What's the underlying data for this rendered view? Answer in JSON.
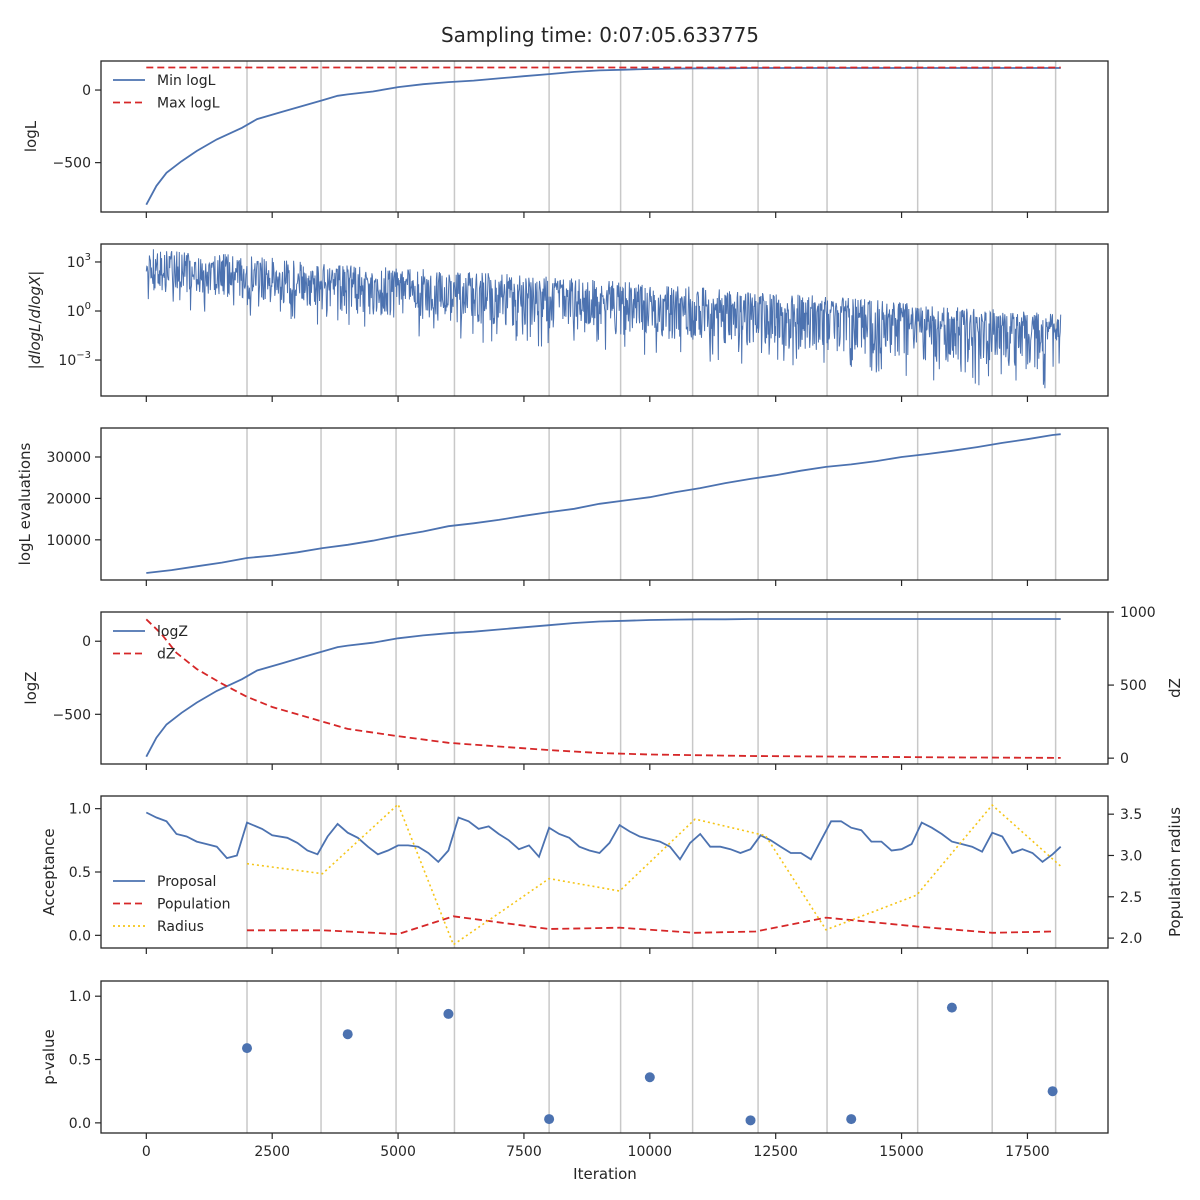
{
  "figure": {
    "title": "Sampling time: 0:07:05.633775",
    "xlabel": "Iteration"
  },
  "colors": {
    "blue": "#4c72b0",
    "red": "#d62728",
    "yellow": "#f5c518",
    "vline": "#c8c8c8",
    "frame": "#262626"
  },
  "chart_data": [
    {
      "type": "line",
      "ylabel": "logL",
      "xlim": [
        -900,
        19100
      ],
      "ylim": [
        -840,
        200
      ],
      "xticks": [
        0,
        2500,
        5000,
        7500,
        10000,
        12500,
        15000,
        17500
      ],
      "yticks": [
        {
          "v": 0,
          "label": "0"
        },
        {
          "v": -500,
          "label": "−500"
        }
      ],
      "legend": "top-left",
      "series": [
        {
          "name": "Min logL",
          "style": "solid",
          "color": "#4c72b0",
          "x": [
            0,
            200,
            400,
            700,
            1000,
            1400,
            1900,
            2200,
            2700,
            3100,
            3500,
            3800,
            4000,
            4500,
            5000,
            5500,
            6000,
            6500,
            7000,
            7500,
            8000,
            8500,
            9000,
            9500,
            10000,
            10500,
            11000,
            11500,
            12000,
            13000,
            14000,
            15000,
            16000,
            17000,
            18160
          ],
          "y": [
            -790,
            -660,
            -570,
            -490,
            -420,
            -340,
            -260,
            -200,
            -150,
            -110,
            -70,
            -40,
            -30,
            -10,
            20,
            40,
            55,
            65,
            80,
            95,
            110,
            125,
            135,
            140,
            145,
            148,
            150,
            150,
            152,
            152,
            152,
            152,
            152,
            152,
            152
          ]
        },
        {
          "name": "Max logL",
          "style": "dashed",
          "color": "#d62728",
          "x": [
            0,
            18160
          ],
          "y": [
            155,
            155
          ]
        }
      ]
    },
    {
      "type": "line",
      "ylabel": "|dlogL/dlogX|",
      "yscale": "log",
      "xlim": [
        -900,
        19100
      ],
      "ylim": [
        -5.2,
        4.1
      ],
      "xticks": [
        0,
        2500,
        5000,
        7500,
        10000,
        12500,
        15000,
        17500
      ],
      "yticks": [
        {
          "v": 3,
          "label": "10",
          "exp": "3"
        },
        {
          "v": 0,
          "label": "10",
          "exp": "0"
        },
        {
          "v": -3,
          "label": "10",
          "exp": "−3"
        }
      ],
      "series": [
        {
          "name": "",
          "style": "noisy",
          "color": "#4c72b0",
          "x": [
            0,
            2000,
            4000,
            6000,
            8000,
            10000,
            12000,
            14000,
            16000,
            18160
          ],
          "y_center": [
            2.4,
            2.1,
            1.6,
            1.3,
            0.9,
            0.5,
            0.0,
            -0.4,
            -0.9,
            -1.3
          ],
          "y_upper": [
            3.9,
            3.4,
            2.8,
            2.5,
            2.1,
            1.7,
            1.2,
            0.8,
            0.3,
            -0.1
          ],
          "y_lower": [
            1.0,
            0.5,
            -0.5,
            -1.0,
            -1.5,
            -2.0,
            -2.5,
            -3.0,
            -3.6,
            -4.2
          ]
        }
      ]
    },
    {
      "type": "line",
      "ylabel": "logL evaluations",
      "xlim": [
        -900,
        19100
      ],
      "ylim": [
        300,
        37000
      ],
      "xticks": [
        0,
        2500,
        5000,
        7500,
        10000,
        12500,
        15000,
        17500
      ],
      "yticks": [
        {
          "v": 10000,
          "label": "10000"
        },
        {
          "v": 20000,
          "label": "20000"
        },
        {
          "v": 30000,
          "label": "30000"
        }
      ],
      "series": [
        {
          "name": "",
          "style": "solid",
          "color": "#4c72b0",
          "x": [
            0,
            500,
            1000,
            1500,
            2000,
            2500,
            3000,
            3500,
            4000,
            4500,
            5000,
            5500,
            6000,
            6500,
            7000,
            7500,
            8000,
            8500,
            9000,
            9500,
            10000,
            10500,
            11000,
            11500,
            12000,
            12500,
            13000,
            13500,
            14000,
            14500,
            15000,
            15500,
            16000,
            16500,
            17000,
            17500,
            18000,
            18160
          ],
          "y": [
            2000,
            2700,
            3600,
            4500,
            5600,
            6200,
            7000,
            8000,
            8800,
            9800,
            11000,
            12000,
            13300,
            14000,
            14800,
            15800,
            16700,
            17500,
            18700,
            19500,
            20300,
            21500,
            22500,
            23700,
            24700,
            25600,
            26700,
            27600,
            28200,
            29000,
            30000,
            30700,
            31500,
            32400,
            33400,
            34300,
            35300,
            35500
          ]
        }
      ]
    },
    {
      "type": "line",
      "ylabel": "logZ",
      "ylabel_right": "dZ",
      "xlim": [
        -900,
        19100
      ],
      "ylim": [
        -840,
        200
      ],
      "ylim_right": [
        -40,
        1000
      ],
      "xticks": [
        0,
        2500,
        5000,
        7500,
        10000,
        12500,
        15000,
        17500
      ],
      "yticks": [
        {
          "v": 0,
          "label": "0"
        },
        {
          "v": -500,
          "label": "−500"
        }
      ],
      "yticks_right": [
        {
          "v": 0,
          "label": "0"
        },
        {
          "v": 500,
          "label": "500"
        },
        {
          "v": 1000,
          "label": "1000"
        }
      ],
      "legend": "top-left",
      "series": [
        {
          "name": "logZ",
          "style": "solid",
          "color": "#4c72b0",
          "axis": "left",
          "x": [
            0,
            200,
            400,
            700,
            1000,
            1400,
            1900,
            2200,
            2700,
            3100,
            3500,
            3800,
            4000,
            4500,
            5000,
            5500,
            6000,
            6500,
            7000,
            7500,
            8000,
            8500,
            9000,
            9500,
            10000,
            10500,
            11000,
            11500,
            12000,
            13000,
            14000,
            15000,
            16000,
            17000,
            18160
          ],
          "y": [
            -790,
            -660,
            -570,
            -490,
            -420,
            -340,
            -260,
            -200,
            -150,
            -110,
            -70,
            -40,
            -30,
            -10,
            20,
            40,
            55,
            65,
            80,
            95,
            110,
            125,
            135,
            140,
            145,
            148,
            150,
            150,
            152,
            152,
            152,
            152,
            152,
            152,
            152
          ]
        },
        {
          "name": "dZ",
          "style": "dashed",
          "color": "#d62728",
          "axis": "right",
          "x": [
            0,
            300,
            600,
            1000,
            1500,
            2000,
            2500,
            3000,
            3500,
            4000,
            5000,
            6000,
            7000,
            8000,
            9000,
            10000,
            12000,
            14000,
            16000,
            18160
          ],
          "y": [
            950,
            850,
            720,
            610,
            510,
            420,
            350,
            300,
            250,
            200,
            150,
            105,
            80,
            55,
            35,
            25,
            15,
            10,
            5,
            2
          ]
        }
      ]
    },
    {
      "type": "line",
      "ylabel": "Acceptance",
      "ylabel_right": "Population radius",
      "xlim": [
        -900,
        19100
      ],
      "ylim": [
        -0.1,
        1.1
      ],
      "ylim_right": [
        1.88,
        3.72
      ],
      "xticks": [
        0,
        2500,
        5000,
        7500,
        10000,
        12500,
        15000,
        17500
      ],
      "yticks": [
        {
          "v": 0,
          "label": "0.0"
        },
        {
          "v": 0.5,
          "label": "0.5"
        },
        {
          "v": 1,
          "label": "1.0"
        }
      ],
      "yticks_right": [
        {
          "v": 2.0,
          "label": "2.0"
        },
        {
          "v": 2.5,
          "label": "2.5"
        },
        {
          "v": 3.0,
          "label": "3.0"
        },
        {
          "v": 3.5,
          "label": "3.5"
        }
      ],
      "legend": "lower-left",
      "series": [
        {
          "name": "Proposal",
          "style": "solid",
          "color": "#4c72b0",
          "axis": "left",
          "x": [
            0,
            200,
            400,
            600,
            800,
            1000,
            1200,
            1400,
            1600,
            1800,
            2000,
            2300,
            2500,
            2800,
            3000,
            3200,
            3400,
            3600,
            3800,
            4000,
            4200,
            4400,
            4600,
            4800,
            5000,
            5200,
            5400,
            5600,
            5800,
            6000,
            6200,
            6400,
            6600,
            6800,
            7000,
            7200,
            7400,
            7600,
            7800,
            8000,
            8200,
            8400,
            8600,
            8800,
            9000,
            9200,
            9400,
            9600,
            9800,
            10000,
            10200,
            10400,
            10600,
            10800,
            11000,
            11200,
            11400,
            11600,
            11800,
            12000,
            12200,
            12400,
            12600,
            12800,
            13000,
            13200,
            13400,
            13600,
            13800,
            14000,
            14200,
            14400,
            14600,
            14800,
            15000,
            15200,
            15400,
            15600,
            15800,
            16000,
            16200,
            16400,
            16600,
            16800,
            17000,
            17200,
            17400,
            17600,
            17800,
            18000,
            18160
          ],
          "y": [
            0.97,
            0.93,
            0.9,
            0.8,
            0.78,
            0.74,
            0.72,
            0.7,
            0.61,
            0.63,
            0.89,
            0.84,
            0.79,
            0.77,
            0.73,
            0.67,
            0.64,
            0.78,
            0.88,
            0.81,
            0.77,
            0.7,
            0.64,
            0.67,
            0.71,
            0.71,
            0.7,
            0.65,
            0.58,
            0.67,
            0.93,
            0.9,
            0.84,
            0.86,
            0.8,
            0.75,
            0.68,
            0.71,
            0.62,
            0.85,
            0.8,
            0.77,
            0.7,
            0.67,
            0.65,
            0.73,
            0.87,
            0.82,
            0.78,
            0.76,
            0.74,
            0.7,
            0.6,
            0.73,
            0.8,
            0.7,
            0.7,
            0.68,
            0.65,
            0.68,
            0.79,
            0.75,
            0.7,
            0.65,
            0.65,
            0.6,
            0.75,
            0.9,
            0.9,
            0.85,
            0.83,
            0.74,
            0.74,
            0.67,
            0.68,
            0.72,
            0.89,
            0.85,
            0.8,
            0.74,
            0.72,
            0.7,
            0.66,
            0.81,
            0.78,
            0.65,
            0.68,
            0.65,
            0.58,
            0.64,
            0.7
          ]
        },
        {
          "name": "Population",
          "style": "dashed",
          "color": "#d62728",
          "axis": "left",
          "x": [
            2000,
            3500,
            4000,
            5000,
            6100,
            8000,
            9400,
            10900,
            12100,
            13500,
            15300,
            16800,
            18000
          ],
          "y": [
            0.04,
            0.04,
            0.03,
            0.01,
            0.15,
            0.05,
            0.06,
            0.02,
            0.03,
            0.14,
            0.07,
            0.02,
            0.03
          ]
        },
        {
          "name": "Radius",
          "style": "dotted",
          "color": "#f5c518",
          "axis": "right",
          "x": [
            2000,
            3500,
            5000,
            6100,
            8000,
            9400,
            10900,
            12300,
            13500,
            15300,
            16800,
            18160
          ],
          "y": [
            2.9,
            2.78,
            3.62,
            1.92,
            2.72,
            2.57,
            3.44,
            3.24,
            2.1,
            2.52,
            3.61,
            2.87
          ]
        }
      ]
    },
    {
      "type": "scatter",
      "ylabel": "p-value",
      "xlim": [
        -900,
        19100
      ],
      "ylim": [
        -0.08,
        1.12
      ],
      "xticks": [
        0,
        2500,
        5000,
        7500,
        10000,
        12500,
        15000,
        17500
      ],
      "yticks": [
        {
          "v": 0,
          "label": "0.0"
        },
        {
          "v": 0.5,
          "label": "0.5"
        },
        {
          "v": 1,
          "label": "1.0"
        }
      ],
      "show_xticklabels": true,
      "series": [
        {
          "name": "",
          "style": "points",
          "color": "#4c72b0",
          "x": [
            2000,
            4000,
            6000,
            8000,
            10000,
            12000,
            14000,
            16000,
            18000
          ],
          "y": [
            0.59,
            0.7,
            0.86,
            0.03,
            0.36,
            0.02,
            0.03,
            0.91,
            0.25
          ]
        }
      ]
    }
  ],
  "vlines_x": [
    2000,
    3470,
    4960,
    6120,
    8000,
    9420,
    10850,
    12150,
    13520,
    15320,
    16800,
    18060
  ]
}
